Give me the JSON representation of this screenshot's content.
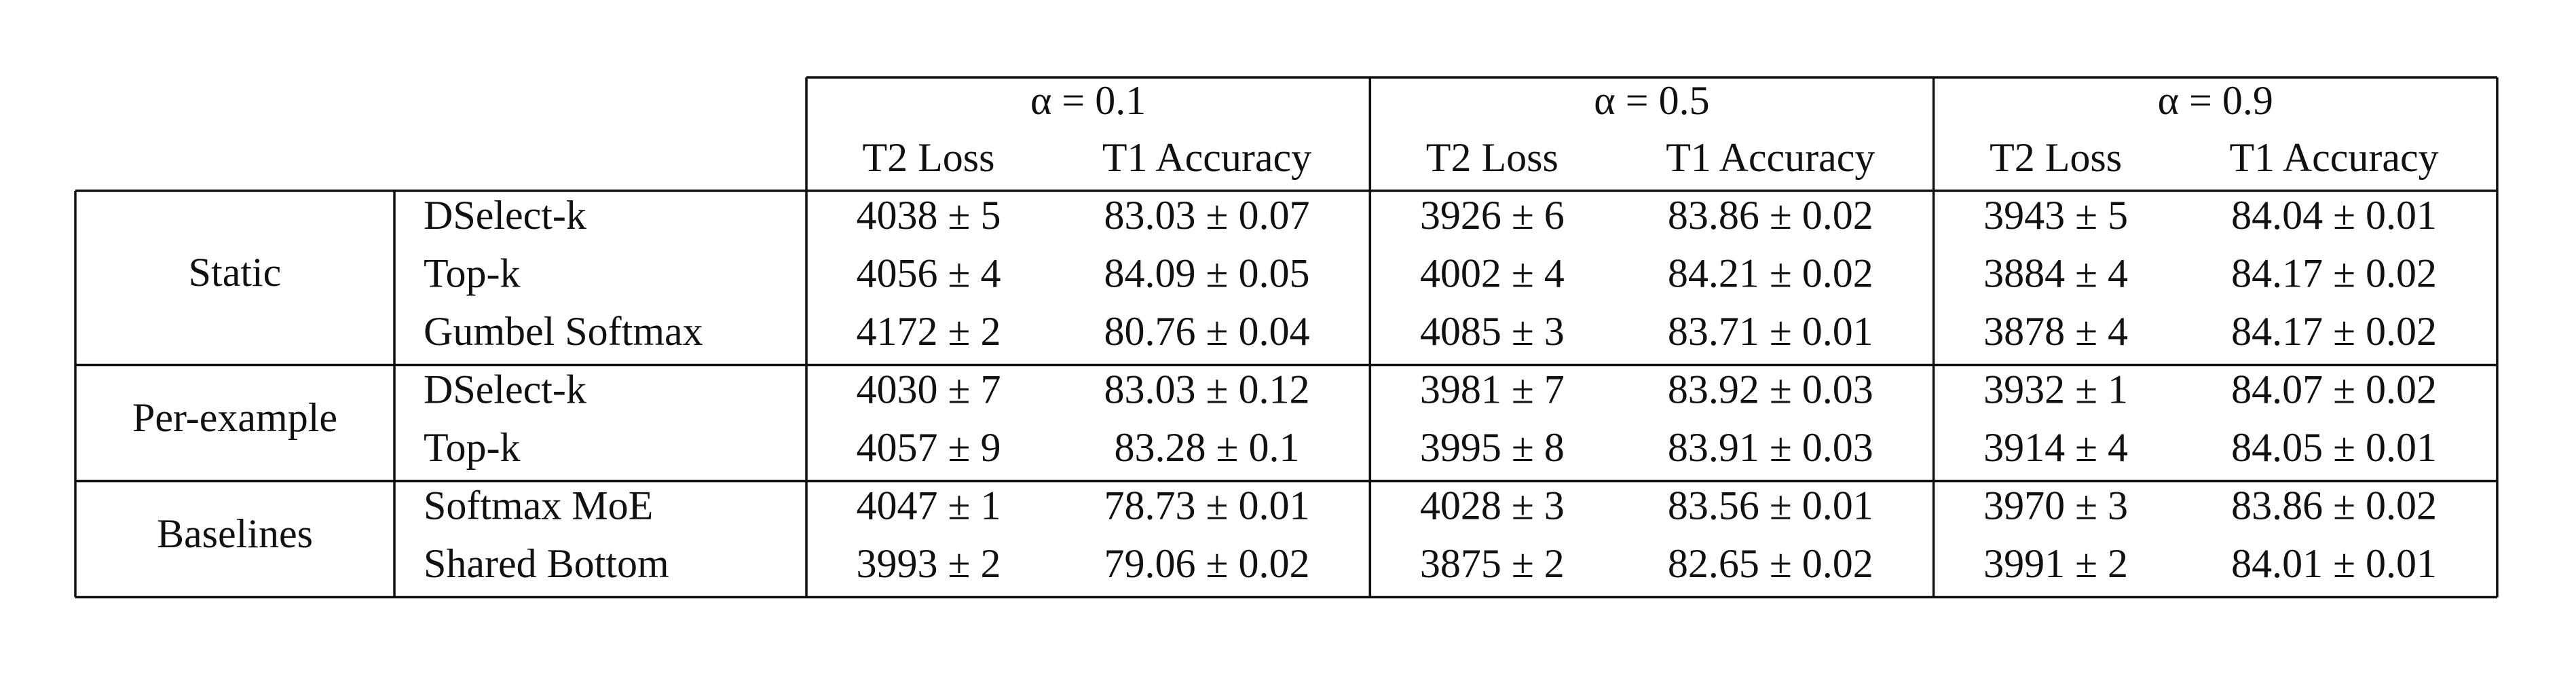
{
  "table": {
    "blocks": [
      {
        "label": "α = 0.1",
        "columns": [
          "T2 Loss",
          "T1 Accuracy"
        ]
      },
      {
        "label": "α = 0.5",
        "columns": [
          "T2 Loss",
          "T1 Accuracy"
        ]
      },
      {
        "label": "α = 0.9",
        "columns": [
          "T2 Loss",
          "T1 Accuracy"
        ]
      }
    ],
    "groups": [
      {
        "name": "Static",
        "rows": [
          {
            "method": "DSelect-k",
            "cells": [
              "4038 ± 5",
              "83.03 ± 0.07",
              "3926 ± 6",
              "83.86 ± 0.02",
              "3943 ± 5",
              "84.04 ± 0.01"
            ]
          },
          {
            "method": "Top-k",
            "cells": [
              "4056 ± 4",
              "84.09 ± 0.05",
              "4002 ± 4",
              "84.21 ± 0.02",
              "3884 ± 4",
              "84.17 ± 0.02"
            ]
          },
          {
            "method": "Gumbel Softmax",
            "cells": [
              "4172 ± 2",
              "80.76 ± 0.04",
              "4085 ± 3",
              "83.71 ± 0.01",
              "3878 ± 4",
              "84.17 ± 0.02"
            ]
          }
        ]
      },
      {
        "name": "Per-example",
        "rows": [
          {
            "method": "DSelect-k",
            "cells": [
              "4030 ± 7",
              "83.03 ± 0.12",
              "3981 ± 7",
              "83.92 ± 0.03",
              "3932 ± 1",
              "84.07 ± 0.02"
            ]
          },
          {
            "method": "Top-k",
            "cells": [
              "4057 ± 9",
              "83.28 ± 0.1",
              "3995 ± 8",
              "83.91 ± 0.03",
              "3914 ± 4",
              "84.05 ± 0.01"
            ]
          }
        ]
      },
      {
        "name": "Baselines",
        "rows": [
          {
            "method": "Softmax MoE",
            "cells": [
              "4047 ± 1",
              "78.73 ± 0.01",
              "4028 ± 3",
              "83.56 ± 0.01",
              "3970 ± 3",
              "83.86 ± 0.02"
            ]
          },
          {
            "method": "Shared Bottom",
            "cells": [
              "3993 ± 2",
              "79.06 ± 0.02",
              "3875 ± 2",
              "82.65 ± 0.02",
              "3991 ± 2",
              "84.01 ± 0.01"
            ]
          }
        ]
      }
    ]
  }
}
